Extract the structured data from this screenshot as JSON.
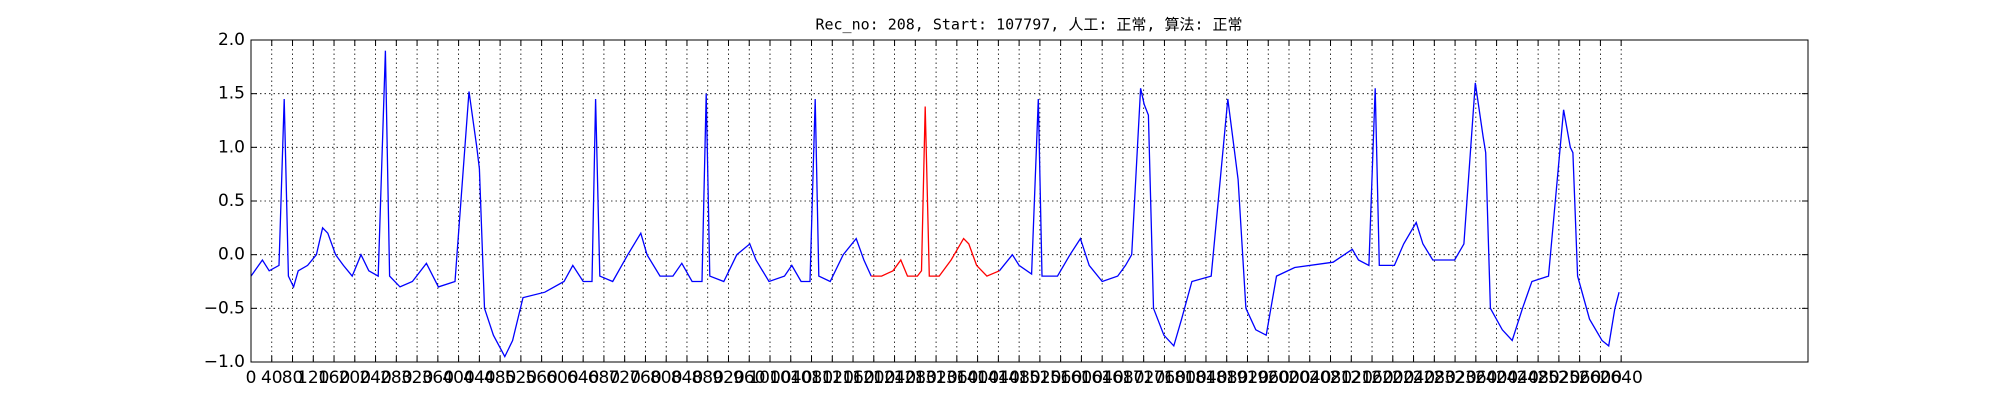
{
  "chart_data": {
    "type": "line",
    "title": "Rec_no: 208, Start: 107797, 人工: 正常, 算法: 正常",
    "xlim": [
      0,
      3000
    ],
    "xticks": [
      0,
      40,
      80,
      120,
      160,
      200,
      240,
      280,
      320,
      360,
      400,
      440,
      480,
      520,
      560,
      600,
      640,
      680,
      720,
      760,
      800,
      840,
      880,
      920,
      960,
      1000,
      1040,
      1080,
      1120,
      1160,
      1200,
      1240,
      1280,
      1320,
      1360,
      1400,
      1440,
      1480,
      1520,
      1560,
      1600,
      1640,
      1680,
      1720,
      1760,
      1800,
      1840,
      1880,
      1920,
      1960,
      2000,
      2040,
      2080,
      2120,
      2160,
      2200,
      2240,
      2280,
      2320,
      2360,
      2400,
      2440,
      2480,
      2520,
      2560,
      2600,
      2640
    ],
    "ylim": [
      -1,
      2
    ],
    "yticks": [
      {
        "value": -1,
        "label": "−1.0"
      },
      {
        "value": -0.5,
        "label": "−0.5"
      },
      {
        "value": 0,
        "label": "0.0"
      },
      {
        "value": 0.5,
        "label": "0.5"
      },
      {
        "value": 1,
        "label": "1.0"
      },
      {
        "value": 1.5,
        "label": "1.5"
      },
      {
        "value": 2,
        "label": "2.0"
      }
    ],
    "grid": true,
    "series": [
      {
        "color": "#0000ff",
        "x": [
          0,
          22,
          35,
          54,
          64,
          72,
          82,
          91,
          109,
          126,
          138,
          148,
          163,
          178,
          195,
          212,
          227,
          245,
          259,
          267,
          287,
          311,
          338,
          361,
          393,
          420,
          435,
          440,
          450,
          467,
          489,
          504,
          524,
          566,
          603,
          620,
          640,
          657,
          664,
          672,
          697,
          726,
          751,
          763,
          788,
          813,
          830,
          850,
          869,
          877,
          884,
          911,
          936,
          961,
          973,
          998,
          1028,
          1042,
          1060,
          1077,
          1087,
          1094,
          1116,
          1141,
          1166,
          1181,
          1195,
          1300,
          1442,
          1467,
          1480,
          1504,
          1517,
          1524,
          1554,
          1578,
          1598,
          1615,
          1640,
          1670,
          1685,
          1697,
          1714,
          1721,
          1729,
          1739,
          1759,
          1778,
          1793,
          1813,
          1850,
          1882,
          1894,
          1902,
          1917,
          1936,
          1956,
          1976,
          2011,
          2085,
          2122,
          2134,
          2154,
          2166,
          2174,
          2203,
          2221,
          2245,
          2258,
          2277,
          2319,
          2337,
          2359,
          2374,
          2379,
          2388,
          2411,
          2430,
          2450,
          2468,
          2500,
          2529,
          2542,
          2547,
          2556,
          2579,
          2603,
          2616,
          2628,
          2636
        ],
        "values": [
          -0.2,
          -0.05,
          -0.15,
          -0.1,
          1.45,
          -0.2,
          -0.3,
          -0.15,
          -0.1,
          0.0,
          0.25,
          0.2,
          0.0,
          -0.1,
          -0.2,
          0.0,
          -0.15,
          -0.2,
          1.9,
          -0.2,
          -0.3,
          -0.25,
          -0.08,
          -0.3,
          -0.25,
          1.52,
          1.0,
          0.8,
          -0.5,
          -0.75,
          -0.95,
          -0.8,
          -0.4,
          -0.35,
          -0.25,
          -0.1,
          -0.25,
          -0.25,
          1.45,
          -0.2,
          -0.25,
          0.0,
          0.2,
          0.0,
          -0.2,
          -0.2,
          -0.08,
          -0.25,
          -0.25,
          1.5,
          -0.2,
          -0.25,
          0.0,
          0.1,
          -0.05,
          -0.25,
          -0.2,
          -0.1,
          -0.25,
          -0.25,
          1.45,
          -0.2,
          -0.25,
          0.0,
          0.15,
          -0.05,
          -0.2,
          null,
          -0.15,
          0.0,
          -0.1,
          -0.18,
          1.45,
          -0.2,
          -0.2,
          0.0,
          0.15,
          -0.1,
          -0.25,
          -0.2,
          -0.1,
          0.0,
          1.55,
          1.4,
          1.3,
          -0.5,
          -0.75,
          -0.85,
          -0.6,
          -0.25,
          -0.2,
          1.45,
          1.0,
          0.7,
          -0.5,
          -0.7,
          -0.75,
          -0.2,
          -0.12,
          -0.07,
          0.05,
          -0.05,
          -0.1,
          1.55,
          -0.1,
          -0.1,
          0.1,
          0.3,
          0.1,
          -0.05,
          -0.05,
          0.1,
          1.6,
          1.1,
          0.95,
          -0.5,
          -0.7,
          -0.8,
          -0.5,
          -0.25,
          -0.2,
          1.35,
          1.0,
          0.95,
          -0.2,
          -0.6,
          -0.8,
          -0.85,
          -0.5,
          -0.35
        ]
      },
      {
        "color": "#ff0000",
        "x": [
          1195,
          1215,
          1237,
          1252,
          1265,
          1284,
          1292,
          1299,
          1307,
          1326,
          1349,
          1373,
          1383,
          1398,
          1418,
          1442
        ],
        "values": [
          -0.2,
          -0.2,
          -0.15,
          -0.05,
          -0.2,
          -0.2,
          -0.15,
          1.38,
          -0.2,
          -0.2,
          -0.05,
          0.15,
          0.1,
          -0.1,
          -0.2,
          -0.15
        ]
      }
    ]
  }
}
